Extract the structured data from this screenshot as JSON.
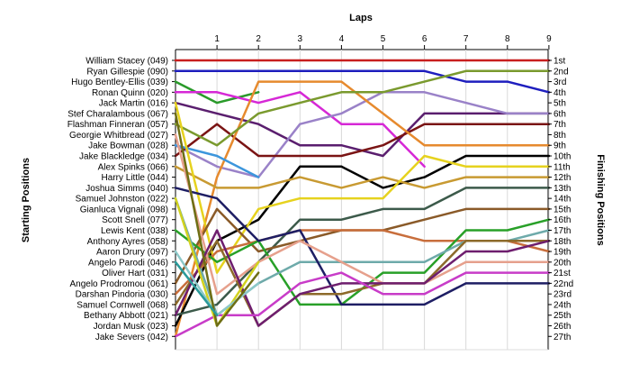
{
  "chart_data": {
    "type": "line",
    "title": "",
    "top_axis_title": "Laps",
    "left_axis_title": "Starting Positions",
    "right_axis_title": "Finishing Positions",
    "x": [
      0,
      1,
      2,
      3,
      4,
      5,
      6,
      7,
      8,
      9
    ],
    "x_tick_labels": [
      "1",
      "2",
      "3",
      "4",
      "5",
      "6",
      "7",
      "8",
      "9"
    ],
    "finishing_labels": [
      "1st",
      "2nd",
      "3rd",
      "4th",
      "5th",
      "6th",
      "7th",
      "8th",
      "9th",
      "10th",
      "11th",
      "12th",
      "13th",
      "14th",
      "15th",
      "16th",
      "17th",
      "18th",
      "19th",
      "20th",
      "21st",
      "22nd",
      "23rd",
      "24th",
      "25th",
      "26th",
      "27th"
    ],
    "grid": "vertical",
    "series": [
      {
        "name": "William Stacey (049)",
        "color": "#c81e1e",
        "values": [
          1,
          1,
          1,
          1,
          1,
          1,
          1,
          1,
          1,
          1
        ]
      },
      {
        "name": "Ryan Gillespie (090)",
        "color": "#1e1ebe",
        "values": [
          2,
          2,
          2,
          2,
          2,
          2,
          2,
          3,
          3,
          4
        ]
      },
      {
        "name": "Hugo Bentley-Ellis (039)",
        "color": "#2a9a2a",
        "values": [
          3,
          5,
          4,
          null,
          null,
          null,
          null,
          null,
          null,
          null
        ]
      },
      {
        "name": "Ronan Quinn (020)",
        "color": "#d628d6",
        "values": [
          4,
          4,
          5,
          4,
          7,
          7,
          11,
          null,
          null,
          null
        ]
      },
      {
        "name": "Jack Martin (016)",
        "color": "#5a1e6e",
        "values": [
          5,
          6,
          7,
          9,
          9,
          10,
          6,
          6,
          6,
          6
        ]
      },
      {
        "name": "Stef Charalambous (067)",
        "color": "#9a82c8",
        "values": [
          9,
          11,
          12,
          7,
          6,
          4,
          4,
          5,
          6,
          6
        ]
      },
      {
        "name": "Flashman Finneran (057)",
        "color": "#7a1414",
        "values": [
          10,
          7,
          10,
          10,
          10,
          9,
          7,
          7,
          7,
          7
        ]
      },
      {
        "name": "Georgie Whitbread (027)",
        "color": "#e68a2e",
        "values": [
          27,
          12,
          3,
          3,
          3,
          6,
          9,
          9,
          9,
          9
        ]
      },
      {
        "name": "Jake Bowman (028)",
        "color": "#3c96dc",
        "values": [
          9,
          10,
          12,
          null,
          null,
          null,
          null,
          null,
          null,
          null
        ]
      },
      {
        "name": "Jake Blackledge (034)",
        "color": "#7a9a2e",
        "values": [
          7,
          9,
          6,
          5,
          4,
          4,
          3,
          2,
          2,
          2
        ]
      },
      {
        "name": "Alex Spinks (066)",
        "color": "#000000",
        "values": [
          26,
          18,
          16,
          11,
          11,
          13,
          12,
          10,
          10,
          10
        ]
      },
      {
        "name": "Harry Little (044)",
        "color": "#c89a32",
        "values": [
          11,
          13,
          13,
          12,
          13,
          12,
          13,
          12,
          12,
          12
        ]
      },
      {
        "name": "Joshua Simms (040)",
        "color": "#e6d21e",
        "values": [
          5,
          21,
          15,
          14,
          14,
          14,
          10,
          11,
          11,
          11
        ]
      },
      {
        "name": "Samuel Johnston (022)",
        "color": "#3c5a4a",
        "values": [
          25,
          24,
          20,
          16,
          16,
          15,
          15,
          13,
          13,
          13
        ]
      },
      {
        "name": "Gianluca Vignali (098)",
        "color": "#8a5a28",
        "values": [
          22,
          15,
          19,
          18,
          17,
          17,
          16,
          15,
          15,
          15
        ]
      },
      {
        "name": "Scott Snell (077)",
        "color": "#c86e3c",
        "values": [
          23,
          19,
          18,
          17,
          17,
          17,
          18,
          18,
          18,
          19
        ]
      },
      {
        "name": "Lewis Kent (038)",
        "color": "#28a028",
        "values": [
          17,
          20,
          18,
          24,
          24,
          21,
          21,
          17,
          17,
          16
        ]
      },
      {
        "name": "Anthony Ayres (058)",
        "color": "#6eaaaa",
        "values": [
          14,
          25,
          22,
          20,
          20,
          20,
          20,
          18,
          18,
          17
        ]
      },
      {
        "name": "Aaron Drury (097)",
        "color": "#1e1e64",
        "values": [
          13,
          14,
          18,
          17,
          24,
          24,
          24,
          22,
          22,
          22
        ]
      },
      {
        "name": "Angelo Parodi (046)",
        "color": "#8c6a2a",
        "values": [
          24,
          18,
          26,
          23,
          23,
          22,
          22,
          18,
          18,
          18
        ]
      },
      {
        "name": "Oliver Hart (031)",
        "color": "#e6a08c",
        "values": [
          8,
          23,
          20,
          18,
          20,
          22,
          22,
          20,
          20,
          20
        ]
      },
      {
        "name": "Angelo Prodromou (061)",
        "color": "#6e1e6e",
        "values": [
          25,
          17,
          26,
          23,
          22,
          22,
          22,
          19,
          19,
          18
        ]
      },
      {
        "name": "Darshan Pindoria (030)",
        "color": "#c83cc8",
        "values": [
          27,
          25,
          25,
          22,
          21,
          23,
          23,
          21,
          21,
          21
        ]
      },
      {
        "name": "Samuel Cornwell (068)",
        "color": "#d2d21e",
        "values": [
          14,
          26,
          20,
          null,
          null,
          null,
          null,
          null,
          null,
          null
        ]
      },
      {
        "name": "Bethany Abbott (021)",
        "color": "#8cc8c8",
        "values": [
          19,
          25,
          22,
          null,
          null,
          null,
          null,
          null,
          null,
          null
        ]
      },
      {
        "name": "Jordan Musk (023)",
        "color": "#6e6e14",
        "values": [
          6,
          26,
          21,
          null,
          null,
          null,
          null,
          null,
          null,
          null
        ]
      },
      {
        "name": "Jake Severs (042)",
        "color": "#2a9a9a",
        "values": [
          20,
          25,
          null,
          null,
          null,
          null,
          null,
          null,
          null,
          null
        ]
      }
    ]
  }
}
